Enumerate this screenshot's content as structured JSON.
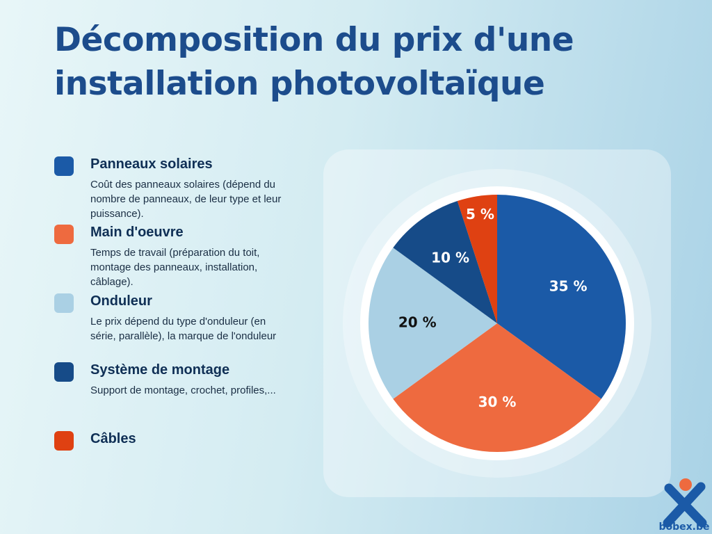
{
  "chart_data": {
    "type": "pie",
    "title": "Décomposition du prix d'une installation photovoltaïque",
    "categories": [
      "Panneaux solaires",
      "Main d'oeuvre",
      "Onduleur",
      "Système de montage",
      "Câbles"
    ],
    "descriptions": [
      "Coût des panneaux solaires (dépend du nombre de panneaux, de leur type et leur puissance).",
      "Temps de travail (préparation du toit, montage des panneaux, installation, câblage).",
      "Le prix dépend du type d'onduleur (en série, parallèle), la marque de l'onduleur",
      "Support de montage, crochet, profiles,...",
      null
    ],
    "values": [
      35,
      30,
      20,
      10,
      5
    ],
    "value_labels": [
      "35 %",
      "30 %",
      "20 %",
      "10 %",
      "5 %"
    ],
    "colors": [
      "#1b5aa7",
      "#ee6a3f",
      "#aad0e4",
      "#164b88",
      "#df4112"
    ],
    "brand": "bobex.be"
  }
}
